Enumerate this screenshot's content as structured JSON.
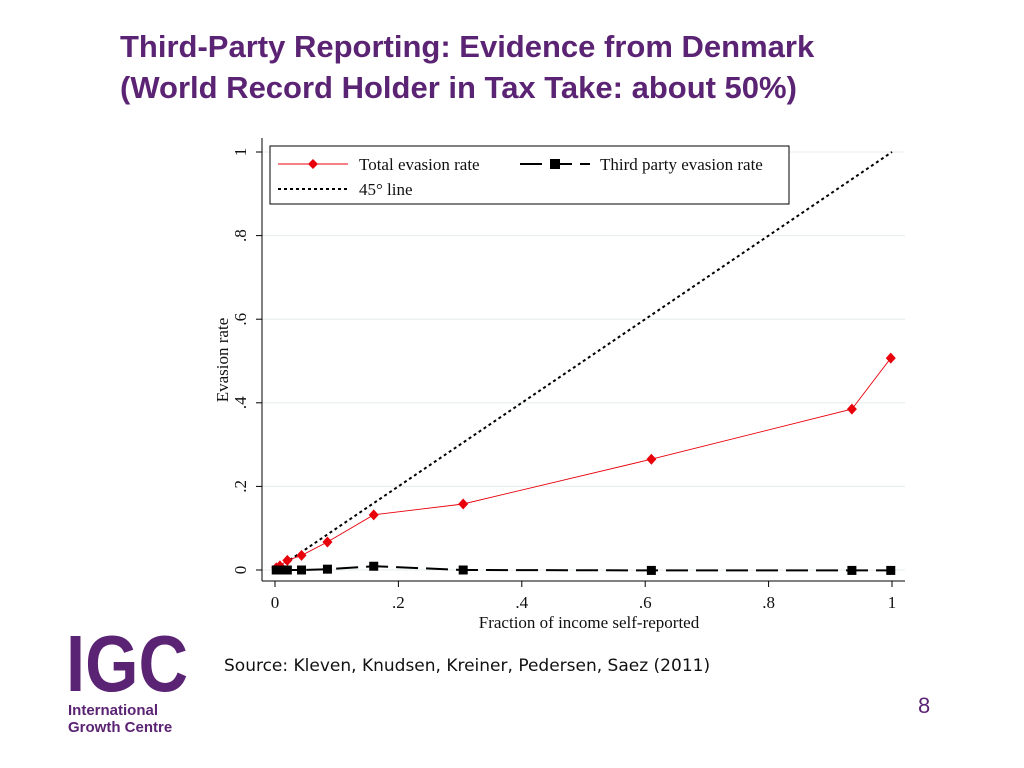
{
  "slide": {
    "title_line1": "Third-Party Reporting: Evidence from Denmark",
    "title_line2": "(World Record Holder in Tax Take: about 50%)",
    "source": "Source: Kleven, Knudsen, Kreiner, Pedersen, Saez (2011)",
    "page_number": "8"
  },
  "logo": {
    "wordmark": "IGC",
    "name_line1": "International",
    "name_line2": "Growth Centre",
    "color": "#5b2373"
  },
  "chart_data": {
    "type": "line",
    "title": "",
    "xlabel": "Fraction of income self-reported",
    "ylabel": "Evasion rate",
    "xlim": [
      0,
      1
    ],
    "ylim": [
      0,
      1
    ],
    "x_ticks": [
      0,
      0.2,
      0.4,
      0.6,
      0.8,
      1
    ],
    "x_tick_labels": [
      "0",
      ".2",
      ".4",
      ".6",
      ".8",
      "1"
    ],
    "y_ticks": [
      0,
      0.2,
      0.4,
      0.6,
      0.8,
      1
    ],
    "y_tick_labels": [
      "0",
      ".2",
      ".4",
      ".6",
      ".8",
      "1"
    ],
    "grid": true,
    "legend_position": "top-left",
    "series": [
      {
        "name": "Total evasion rate",
        "color": "#e8000b",
        "marker": "diamond",
        "line": "solid",
        "points": [
          {
            "x": 0.002,
            "y": 0.005
          },
          {
            "x": 0.008,
            "y": 0.01
          },
          {
            "x": 0.02,
            "y": 0.023
          },
          {
            "x": 0.043,
            "y": 0.035
          },
          {
            "x": 0.085,
            "y": 0.067
          },
          {
            "x": 0.16,
            "y": 0.132
          },
          {
            "x": 0.305,
            "y": 0.158
          },
          {
            "x": 0.61,
            "y": 0.265
          },
          {
            "x": 0.935,
            "y": 0.385
          },
          {
            "x": 0.998,
            "y": 0.507
          }
        ]
      },
      {
        "name": "Third party evasion rate",
        "color": "#000000",
        "marker": "square",
        "line": "longdash",
        "points": [
          {
            "x": 0.002,
            "y": 0.0
          },
          {
            "x": 0.008,
            "y": 0.0
          },
          {
            "x": 0.02,
            "y": 0.0
          },
          {
            "x": 0.043,
            "y": 0.0
          },
          {
            "x": 0.085,
            "y": 0.002
          },
          {
            "x": 0.16,
            "y": 0.009
          },
          {
            "x": 0.305,
            "y": 0.0
          },
          {
            "x": 0.61,
            "y": -0.001
          },
          {
            "x": 0.935,
            "y": -0.001
          },
          {
            "x": 0.998,
            "y": -0.001
          }
        ]
      },
      {
        "name": "45° line",
        "color": "#000000",
        "marker": "none",
        "line": "dotted",
        "points": [
          {
            "x": 0,
            "y": 0
          },
          {
            "x": 1,
            "y": 1
          }
        ]
      }
    ]
  }
}
